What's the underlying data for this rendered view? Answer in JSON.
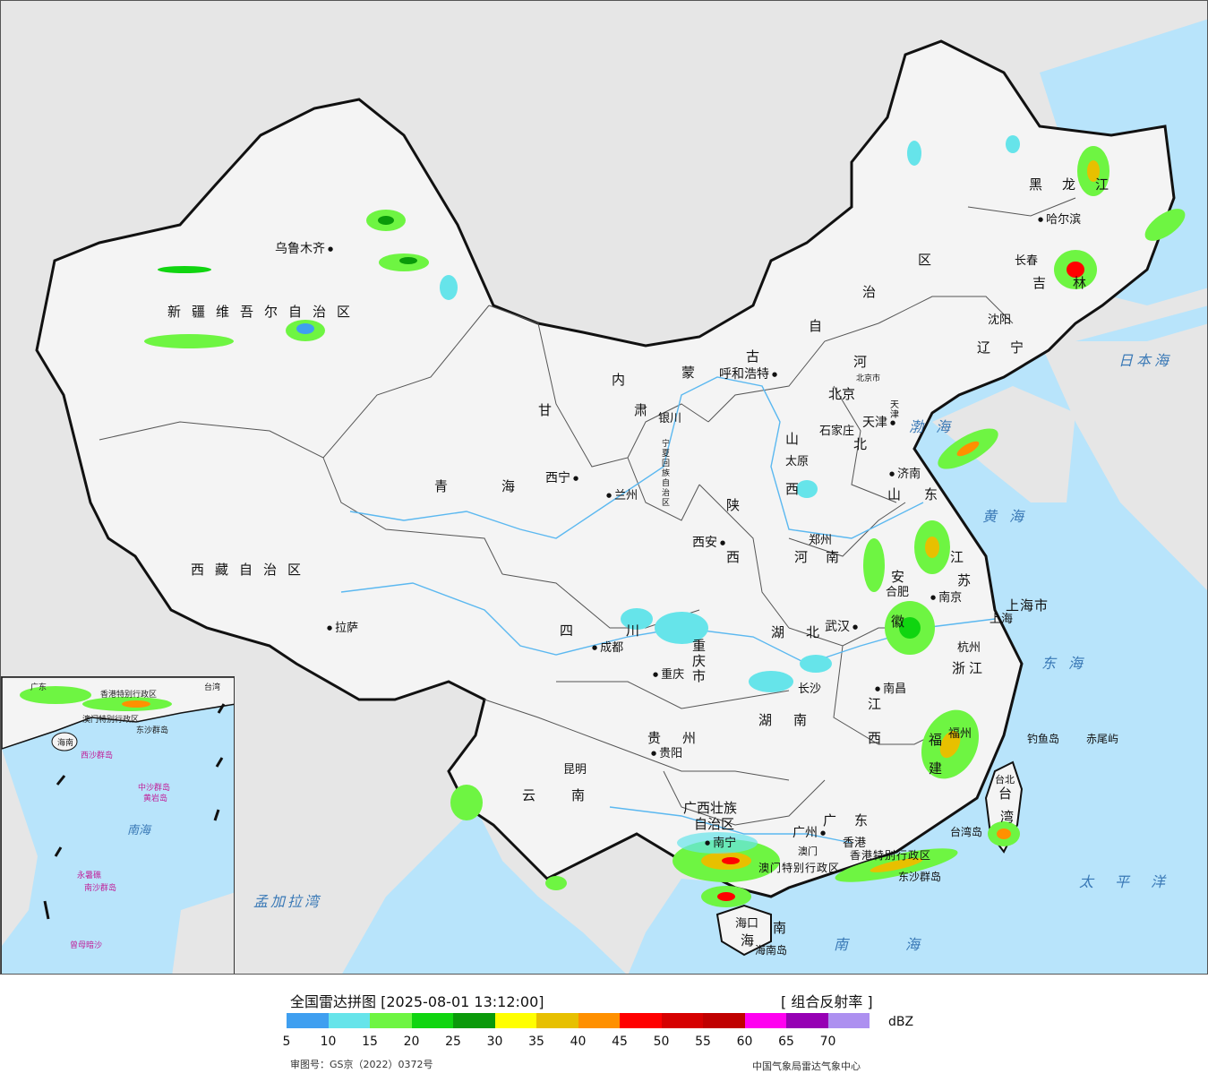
{
  "legend": {
    "title": "全国雷达拼图 [2025-08-01 13:12:00]",
    "product": "[ 组合反射率 ]",
    "unit": "dBZ",
    "colors": [
      "#3f9ff0",
      "#66e4ea",
      "#6ef542",
      "#10d510",
      "#0a9a0a",
      "#ffff00",
      "#e7c000",
      "#ff9000",
      "#ff0000",
      "#d60000",
      "#c00000",
      "#ff00f0",
      "#9600b4",
      "#ad90f0"
    ],
    "ticks": [
      "5",
      "10",
      "15",
      "20",
      "25",
      "30",
      "35",
      "40",
      "45",
      "50",
      "55",
      "60",
      "65",
      "70"
    ],
    "approval": "审图号：GS京（2022）0372号",
    "producer": "中国气象局雷达气象中心"
  },
  "map": {
    "colors": {
      "land": "#f4f4f4",
      "sea": "#b8e4fb",
      "foreign": "#e6e6e6",
      "border": "#111111",
      "river": "#5bb8f0"
    },
    "provinces": [
      "新疆维吾尔自治区",
      "西藏自治区",
      "青海",
      "甘肃",
      "内蒙古自治区",
      "黑龙江",
      "吉林",
      "辽宁",
      "河北",
      "山西",
      "陕西",
      "宁夏回族自治区",
      "四川",
      "重庆市",
      "云南",
      "贵州",
      "广西壮族自治区",
      "广东",
      "海南",
      "湖南",
      "湖北",
      "河南",
      "山东",
      "江苏",
      "安徽",
      "浙江",
      "江西",
      "福建",
      "台湾",
      "上海市",
      "天津",
      "北京市",
      "香港特别行政区",
      "澳门特别行政区"
    ],
    "province_labels": {
      "xinjiang": "新疆维吾尔自治区",
      "xizang": "西藏自治区",
      "qinghai": "青海",
      "gansu": "甘肃",
      "neimenggu_1": "内",
      "neimenggu_2": "蒙",
      "neimenggu_3": "古",
      "neimenggu_4": "自",
      "neimenggu_5": "治",
      "neimenggu_6": "区",
      "heilongjiang": "黑龙江",
      "jilin": "吉林",
      "liaoning": "辽宁",
      "hebei_1": "河",
      "hebei_2": "北",
      "shanxi_1": "山",
      "shanxi_2": "西",
      "shaanxi_1": "陕",
      "shaanxi_2": "西",
      "ningxia": "宁夏回族自治区",
      "sichuan_1": "四",
      "sichuan_2": "川",
      "chongqing": "重庆市",
      "yunnan": "云南",
      "guizhou": "贵州",
      "guangxi_1": "广西壮族",
      "guangxi_2": "自治区",
      "guangdong": "广东",
      "hainan_1": "海",
      "hainan_2": "南",
      "hunan": "湖南",
      "hubei": "湖北",
      "henan": "河南",
      "shandong": "山东",
      "jiangsu_1": "江",
      "jiangsu_2": "苏",
      "anhui_1": "安",
      "anhui_2": "徽",
      "zhejiang": "浙江",
      "jiangxi_1": "江",
      "jiangxi_2": "西",
      "fujian_1": "福",
      "fujian_2": "建",
      "taiwan_1": "台",
      "taiwan_2": "湾",
      "shanghai": "上海市",
      "tianjin": "天津",
      "beijing_prov": "北京市",
      "hongkong": "香港特别行政区",
      "macau": "澳门特别行政区"
    },
    "cities": {
      "urumqi": "乌鲁木齐",
      "lhasa": "拉萨",
      "xining": "西宁",
      "lanzhou": "兰州",
      "yinchuan": "银川",
      "hohhot": "呼和浩特",
      "beijing": "北京",
      "tianjin": "天津",
      "shijiazhuang": "石家庄",
      "taiyuan": "太原",
      "jinan": "济南",
      "zhengzhou": "郑州",
      "xian": "西安",
      "chengdu": "成都",
      "chongqing": "重庆",
      "wuhan": "武汉",
      "hefei": "合肥",
      "nanjing": "南京",
      "shanghai": "上海",
      "hangzhou": "杭州",
      "changsha": "长沙",
      "nanchang": "南昌",
      "fuzhou": "福州",
      "guiyang": "贵阳",
      "kunming": "昆明",
      "nanning": "南宁",
      "guangzhou": "广州",
      "hongkong": "香港",
      "macau": "澳门",
      "haikou": "海口",
      "taipei": "台北",
      "harbin": "哈尔滨",
      "changchun": "长春",
      "shenyang": "沈阳"
    },
    "seas": {
      "bohai": "渤海",
      "huanghai": "黄海",
      "donghai": "东海",
      "nanhai": "南海",
      "taipingyang": "太平洋",
      "ribenhai": "日本海",
      "mengjiala": "孟加拉湾"
    },
    "islands": {
      "diaoyu": "钓鱼岛",
      "chiwei": "赤尾屿",
      "taiwandao": "台湾岛",
      "hainandao": "海南岛",
      "dongsha": "东沙群岛"
    },
    "inset": {
      "sea": "南海",
      "labels": [
        "广东",
        "香港特别行政区",
        "澳门特别行政区",
        "海南",
        "台湾",
        "东沙群岛",
        "西沙群岛",
        "中沙群岛",
        "黄岩岛",
        "南沙群岛",
        "永暑礁",
        "曾母暗沙"
      ]
    }
  }
}
